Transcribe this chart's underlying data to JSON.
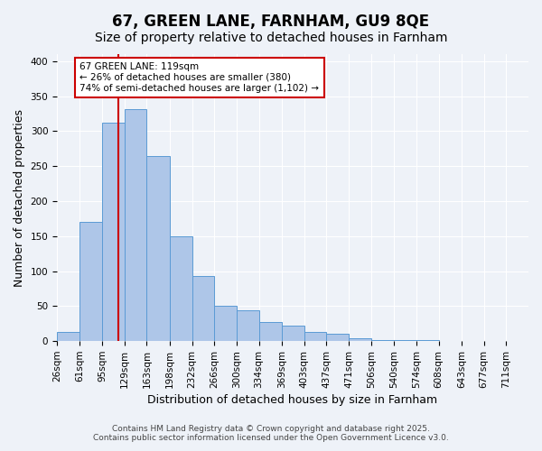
{
  "title": "67, GREEN LANE, FARNHAM, GU9 8QE",
  "subtitle": "Size of property relative to detached houses in Farnham",
  "xlabel": "Distribution of detached houses by size in Farnham",
  "ylabel": "Number of detached properties",
  "bin_labels": [
    "26sqm",
    "61sqm",
    "95sqm",
    "129sqm",
    "163sqm",
    "198sqm",
    "232sqm",
    "266sqm",
    "300sqm",
    "334sqm",
    "369sqm",
    "403sqm",
    "437sqm",
    "471sqm",
    "506sqm",
    "540sqm",
    "574sqm",
    "608sqm",
    "643sqm",
    "677sqm",
    "711sqm"
  ],
  "bin_edges": [
    26,
    61,
    95,
    129,
    163,
    198,
    232,
    266,
    300,
    334,
    369,
    403,
    437,
    471,
    506,
    540,
    574,
    608,
    643,
    677,
    711,
    745
  ],
  "bar_heights": [
    13,
    170,
    312,
    331,
    265,
    150,
    93,
    50,
    44,
    27,
    22,
    13,
    10,
    4,
    2,
    1,
    1,
    0,
    0,
    0,
    0
  ],
  "bar_color": "#aec6e8",
  "bar_edge_color": "#5b9bd5",
  "property_value": 119,
  "annotation_line1": "67 GREEN LANE: 119sqm",
  "annotation_line2": "← 26% of detached houses are smaller (380)",
  "annotation_line3": "74% of semi-detached houses are larger (1,102) →",
  "annotation_box_color": "#ffffff",
  "annotation_box_edge_color": "#cc0000",
  "red_line_color": "#cc0000",
  "ylim": [
    0,
    410
  ],
  "yticks": [
    0,
    50,
    100,
    150,
    200,
    250,
    300,
    350,
    400
  ],
  "background_color": "#eef2f8",
  "footer_line1": "Contains HM Land Registry data © Crown copyright and database right 2025.",
  "footer_line2": "Contains public sector information licensed under the Open Government Licence v3.0.",
  "title_fontsize": 12,
  "subtitle_fontsize": 10,
  "axis_label_fontsize": 9,
  "tick_fontsize": 7.5,
  "footer_fontsize": 6.5
}
